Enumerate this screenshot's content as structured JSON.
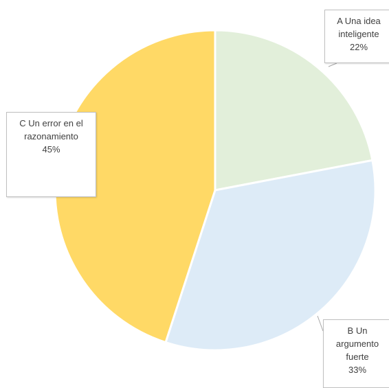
{
  "chart_data": {
    "type": "pie",
    "categories": [
      "A Una idea inteligente",
      "B Un argumento fuerte",
      "C Un error en el razonamiento"
    ],
    "values": [
      22,
      33,
      45
    ],
    "value_labels": [
      "22%",
      "33%",
      "45%"
    ],
    "colors": [
      "#e2efda",
      "#ddebf7",
      "#ffd966"
    ]
  }
}
